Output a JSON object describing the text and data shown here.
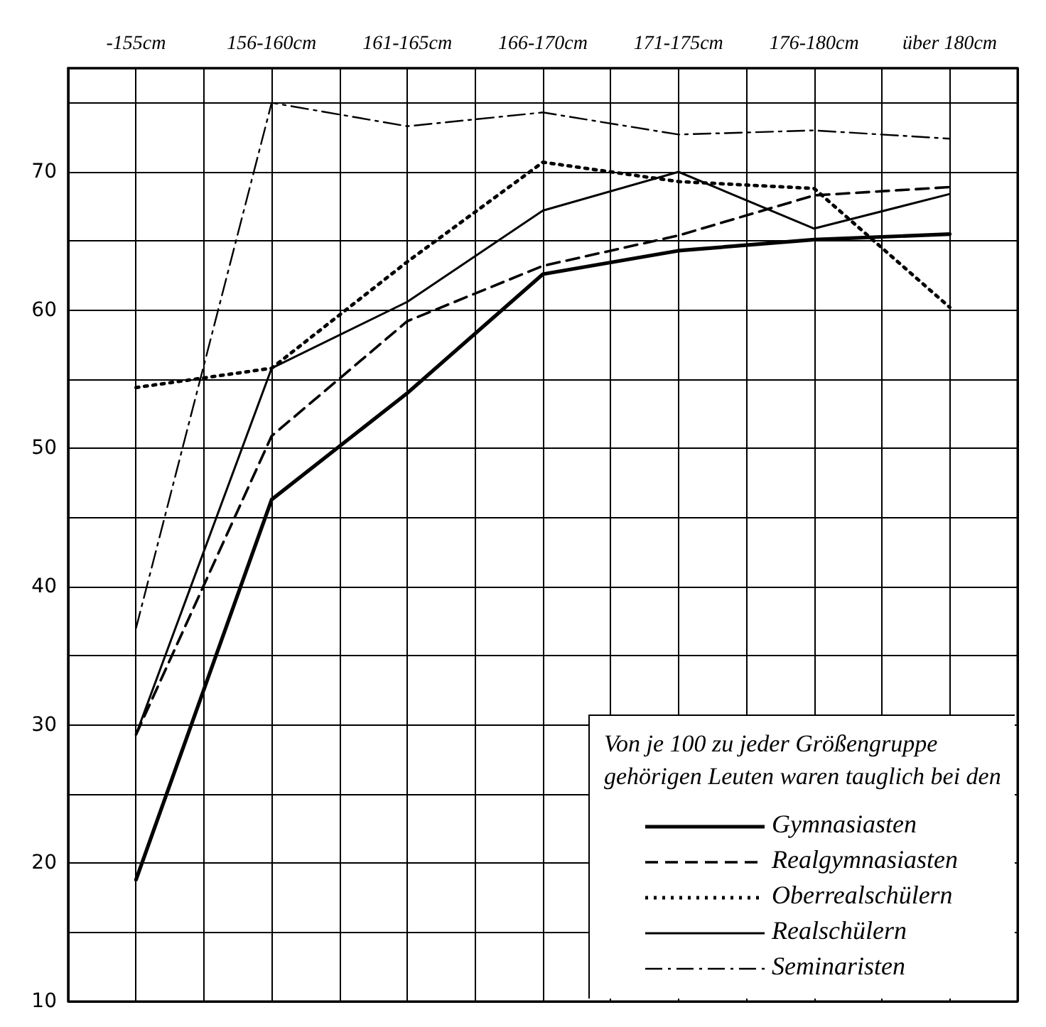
{
  "chart_data": {
    "type": "line",
    "categories": [
      "-155cm",
      "156-160cm",
      "161-165cm",
      "166-170cm",
      "171-175cm",
      "176-180cm",
      "über 180cm"
    ],
    "series": [
      {
        "name": "Gymnasiasten",
        "color": "#000000",
        "line_style": "solid",
        "values": [
          18.8,
          46.3,
          54,
          62.6,
          64.3,
          65.1,
          65.5
        ]
      },
      {
        "name": "Realgymnasiasten",
        "color": "#000000",
        "line_style": "dashed",
        "values": [
          29.3,
          50.9,
          59.2,
          63.2,
          65.4,
          68.3,
          68.9
        ]
      },
      {
        "name": "Oberrealschülern",
        "color": "#000000",
        "line_style": "dotted",
        "values": [
          54.4,
          55.8,
          63.5,
          70.7,
          69.3,
          68.8,
          60.2
        ]
      },
      {
        "name": "Realschülern",
        "color": "#000000",
        "line_style": "solid",
        "values": [
          29.3,
          55.8,
          60.6,
          67.2,
          70,
          65.9,
          68.4
        ]
      },
      {
        "name": "Seminaristen",
        "color": "#000000",
        "line_style": "dashdot",
        "values": [
          37,
          75,
          73.3,
          74.3,
          72.7,
          73,
          72.4
        ]
      }
    ],
    "legend_title": "Von je 100 zu jeder Größengruppe gehörigen Leuten waren tauglich bei den",
    "legend": "bottom right",
    "ylim": [
      10,
      77.5
    ],
    "yticks": [
      10,
      {
        "value": 15,
        "label": null
      },
      20,
      {
        "value": 25,
        "label": null
      },
      30,
      {
        "value": 35,
        "label": null
      },
      40,
      {
        "value": 45,
        "label": null
      },
      50,
      {
        "value": 55,
        "label": null
      },
      60,
      {
        "value": 65,
        "label": null
      },
      70,
      {
        "value": 75,
        "label": null
      }
    ],
    "grid": true,
    "marker": "none"
  }
}
